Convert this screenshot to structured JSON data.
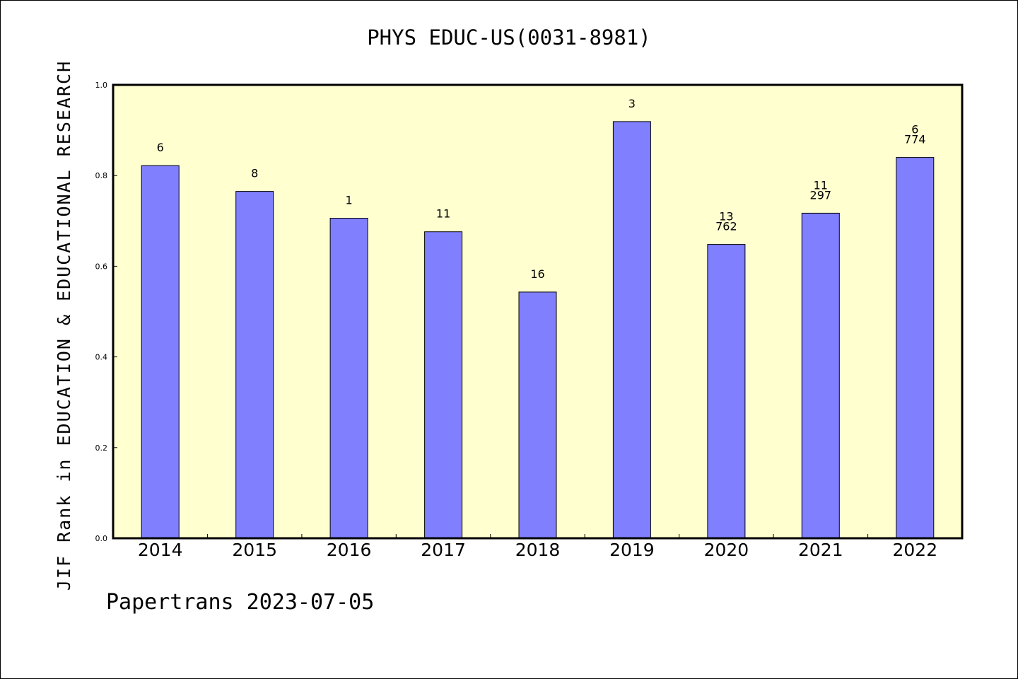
{
  "chart_data": {
    "type": "bar",
    "title": "PHYS EDUC-US(0031-8981)",
    "ylabel": "JIF Rank in EDUCATION & EDUCATIONAL RESEARCH",
    "xlabel": "",
    "categories": [
      "2014",
      "2015",
      "2016",
      "2017",
      "2018",
      "2019",
      "2020",
      "2021",
      "2022"
    ],
    "values": [
      0.822,
      0.765,
      0.706,
      0.676,
      0.543,
      0.919,
      0.648,
      0.717,
      0.84
    ],
    "bar_labels": [
      [
        "6"
      ],
      [
        "8"
      ],
      [
        "1"
      ],
      [
        "11"
      ],
      [
        "16"
      ],
      [
        "3"
      ],
      [
        "13",
        "762"
      ],
      [
        "11",
        "297"
      ],
      [
        "6",
        "774"
      ]
    ],
    "ylim": [
      0,
      1.0
    ],
    "yticks": [
      "0.0",
      "0.2",
      "0.4",
      "0.6",
      "0.8",
      "1.0"
    ],
    "grid": false,
    "colors": {
      "bar": "#8080ff",
      "plot_bg": "#ffffd0",
      "outline": "#000000"
    }
  },
  "footer": "Papertrans 2023-07-05"
}
